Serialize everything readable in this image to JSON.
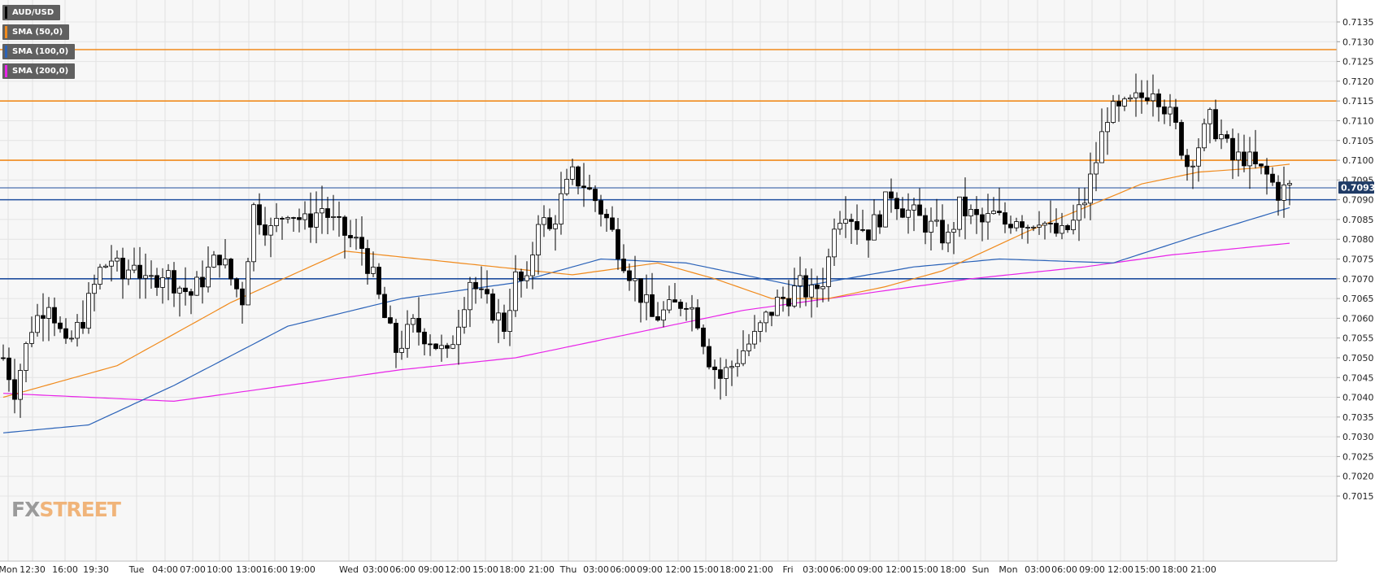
{
  "legend": [
    {
      "label": "AUD/USD",
      "color": "#000000"
    },
    {
      "label": "SMA (50,0)",
      "color": "#f08a1c"
    },
    {
      "label": "SMA (100,0)",
      "color": "#2a62b8"
    },
    {
      "label": "SMA (200,0)",
      "color": "#e823e8"
    }
  ],
  "logo": {
    "fx": "FX",
    "street": "STREET"
  },
  "price_tag": "0.70931",
  "chart_data": {
    "type": "candlestick",
    "symbol": "AUD/USD",
    "ylim": [
      0.701,
      0.714
    ],
    "y_ticks": [
      "0.7015",
      "0.7020",
      "0.7025",
      "0.7030",
      "0.7035",
      "0.7040",
      "0.7045",
      "0.7050",
      "0.7055",
      "0.7060",
      "0.7065",
      "0.7070",
      "0.7075",
      "0.7080",
      "0.7085",
      "0.7090",
      "0.7095",
      "0.7100",
      "0.7105",
      "0.7110",
      "0.7115",
      "0.7120",
      "0.7125",
      "0.7130",
      "0.7135"
    ],
    "x_ticks": [
      "Mon",
      "12:30",
      "16:00",
      "19:30",
      "Tue",
      "04:00",
      "07:00",
      "10:00",
      "13:00",
      "16:00",
      "19:00",
      "Wed",
      "03:00",
      "06:00",
      "09:00",
      "12:00",
      "15:00",
      "18:00",
      "21:00",
      "Thu",
      "03:00",
      "06:00",
      "09:00",
      "12:00",
      "15:00",
      "18:00",
      "21:00",
      "Fri",
      "03:00",
      "06:00",
      "09:00",
      "12:00",
      "15:00",
      "18:00",
      "Sun",
      "Mon",
      "03:00",
      "06:00",
      "09:00",
      "12:00",
      "15:00",
      "18:00",
      "21:00"
    ],
    "grid": true,
    "resistance_levels": [
      0.7128,
      0.7115,
      0.71
    ],
    "support_levels": [
      0.7093,
      0.709,
      0.707
    ],
    "last_price": 0.70931,
    "colors": {
      "up": "#ffffff",
      "down": "#000000",
      "resistance": "#f08a1c",
      "support": "#1f4e9e"
    },
    "price_path": [
      [
        0,
        0.705
      ],
      [
        2,
        0.7042
      ],
      [
        5,
        0.7058
      ],
      [
        8,
        0.7065
      ],
      [
        11,
        0.7052
      ],
      [
        14,
        0.706
      ],
      [
        17,
        0.7072
      ],
      [
        19,
        0.7075
      ],
      [
        21,
        0.707
      ],
      [
        23,
        0.7075
      ],
      [
        25,
        0.7068
      ],
      [
        28,
        0.7072
      ],
      [
        31,
        0.7068
      ],
      [
        33,
        0.7066
      ],
      [
        35,
        0.707
      ],
      [
        38,
        0.7076
      ],
      [
        40,
        0.707
      ],
      [
        42,
        0.7065
      ],
      [
        44,
        0.7088
      ],
      [
        47,
        0.7082
      ],
      [
        50,
        0.7088
      ],
      [
        53,
        0.7084
      ],
      [
        56,
        0.7088
      ],
      [
        58,
        0.7084
      ],
      [
        61,
        0.708
      ],
      [
        63,
        0.7078
      ],
      [
        65,
        0.707
      ],
      [
        67,
        0.706
      ],
      [
        69,
        0.7052
      ],
      [
        72,
        0.7058
      ],
      [
        75,
        0.7055
      ],
      [
        78,
        0.705
      ],
      [
        80,
        0.706
      ],
      [
        82,
        0.707
      ],
      [
        84,
        0.7065
      ],
      [
        86,
        0.7062
      ],
      [
        88,
        0.7058
      ],
      [
        90,
        0.707
      ],
      [
        92,
        0.7068
      ],
      [
        94,
        0.7086
      ],
      [
        96,
        0.7082
      ],
      [
        98,
        0.709
      ],
      [
        100,
        0.7096
      ],
      [
        102,
        0.7094
      ],
      [
        104,
        0.709
      ],
      [
        106,
        0.7085
      ],
      [
        108,
        0.7078
      ],
      [
        110,
        0.7072
      ],
      [
        112,
        0.7066
      ],
      [
        114,
        0.706
      ],
      [
        117,
        0.7062
      ],
      [
        120,
        0.7065
      ],
      [
        122,
        0.706
      ],
      [
        124,
        0.705
      ],
      [
        126,
        0.7045
      ],
      [
        128,
        0.7048
      ],
      [
        130,
        0.7052
      ],
      [
        132,
        0.7055
      ],
      [
        134,
        0.706
      ],
      [
        136,
        0.7064
      ],
      [
        138,
        0.7066
      ],
      [
        140,
        0.7068
      ],
      [
        142,
        0.7066
      ],
      [
        144,
        0.707
      ],
      [
        145,
        0.7075
      ],
      [
        146,
        0.7085
      ],
      [
        148,
        0.7088
      ],
      [
        150,
        0.7084
      ],
      [
        152,
        0.7082
      ],
      [
        154,
        0.7086
      ],
      [
        156,
        0.7092
      ],
      [
        158,
        0.7088
      ],
      [
        160,
        0.7086
      ],
      [
        162,
        0.7084
      ],
      [
        164,
        0.7082
      ],
      [
        166,
        0.708
      ],
      [
        168,
        0.7088
      ],
      [
        170,
        0.7086
      ],
      [
        172,
        0.7084
      ],
      [
        174,
        0.7086
      ],
      [
        176,
        0.7084
      ],
      [
        178,
        0.7086
      ],
      [
        180,
        0.7084
      ],
      [
        182,
        0.7086
      ],
      [
        184,
        0.7082
      ],
      [
        186,
        0.7081
      ],
      [
        188,
        0.7084
      ],
      [
        190,
        0.709
      ],
      [
        192,
        0.71
      ],
      [
        194,
        0.7112
      ],
      [
        196,
        0.7112
      ],
      [
        198,
        0.7114
      ],
      [
        200,
        0.7116
      ],
      [
        202,
        0.7119
      ],
      [
        204,
        0.7114
      ],
      [
        206,
        0.7108
      ],
      [
        208,
        0.7099
      ],
      [
        210,
        0.7104
      ],
      [
        212,
        0.711
      ],
      [
        214,
        0.7106
      ],
      [
        216,
        0.71
      ],
      [
        218,
        0.7101
      ],
      [
        220,
        0.7098
      ],
      [
        222,
        0.7096
      ],
      [
        224,
        0.7092
      ],
      [
        226,
        0.7093
      ]
    ],
    "sma_50": [
      [
        0,
        0.704
      ],
      [
        20,
        0.7048
      ],
      [
        40,
        0.7064
      ],
      [
        60,
        0.7077
      ],
      [
        80,
        0.7074
      ],
      [
        100,
        0.7071
      ],
      [
        115,
        0.7074
      ],
      [
        125,
        0.707
      ],
      [
        135,
        0.7065
      ],
      [
        145,
        0.7065
      ],
      [
        155,
        0.7068
      ],
      [
        165,
        0.7072
      ],
      [
        180,
        0.7082
      ],
      [
        190,
        0.7088
      ],
      [
        200,
        0.7094
      ],
      [
        210,
        0.7097
      ],
      [
        220,
        0.7098
      ],
      [
        226,
        0.7099
      ]
    ],
    "sma_100": [
      [
        0,
        0.7031
      ],
      [
        15,
        0.7033
      ],
      [
        30,
        0.7043
      ],
      [
        50,
        0.7058
      ],
      [
        70,
        0.7065
      ],
      [
        90,
        0.7069
      ],
      [
        105,
        0.7075
      ],
      [
        120,
        0.7074
      ],
      [
        140,
        0.7068
      ],
      [
        160,
        0.7073
      ],
      [
        175,
        0.7075
      ],
      [
        195,
        0.7074
      ],
      [
        210,
        0.7081
      ],
      [
        226,
        0.7088
      ]
    ],
    "sma_200": [
      [
        0,
        0.7041
      ],
      [
        30,
        0.7039
      ],
      [
        45,
        0.7042
      ],
      [
        70,
        0.7047
      ],
      [
        90,
        0.705
      ],
      [
        110,
        0.7056
      ],
      [
        130,
        0.7062
      ],
      [
        150,
        0.7066
      ],
      [
        170,
        0.707
      ],
      [
        190,
        0.7073
      ],
      [
        205,
        0.7076
      ],
      [
        226,
        0.7079
      ]
    ]
  }
}
